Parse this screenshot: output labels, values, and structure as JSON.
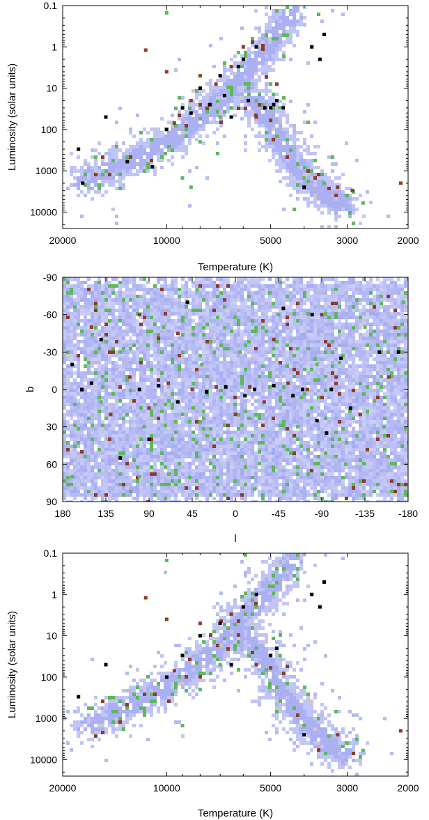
{
  "chart_data": [
    {
      "type": "heatmap",
      "title": "",
      "xlabel": "Temperature (K)",
      "ylabel": "Luminosity (solar units)",
      "x_scale": "log",
      "x_reversed": true,
      "y_scale": "log",
      "xlim": [
        20000,
        2000
      ],
      "ylim": [
        0.1,
        25000
      ],
      "x_ticks": [
        20000,
        10000,
        5000,
        3000,
        2000
      ],
      "x_tick_labels": [
        "20000",
        "10000",
        "5000",
        "3000",
        "2000"
      ],
      "y_ticks": [
        0.1,
        1,
        10,
        100,
        1000,
        10000
      ],
      "y_tick_labels": [
        "0.1",
        "1",
        "10",
        "100",
        "1000",
        "10000"
      ],
      "grid": false,
      "colors": {
        "density": "#8f96ee",
        "green": "#5db85a",
        "red": "#8e3c28",
        "black": "#000000",
        "pale": "#c9c9cf"
      },
      "branches": [
        {
          "name": "main-sequence",
          "points": [
            [
              17500,
              1800
            ],
            [
              12000,
              500
            ],
            [
              9000,
              120
            ],
            [
              7000,
              20
            ],
            [
              6000,
              5
            ],
            [
              5000,
              0.8
            ],
            [
              4300,
              0.15
            ]
          ]
        },
        {
          "name": "giant-branch",
          "points": [
            [
              6000,
              10
            ],
            [
              5200,
              40
            ],
            [
              4800,
              150
            ],
            [
              4200,
              800
            ],
            [
              3600,
              3000
            ],
            [
              3000,
              8000
            ]
          ]
        }
      ],
      "highlighted_points": {
        "black": [
          [
            18000,
            300
          ],
          [
            17500,
            2000
          ],
          [
            15000,
            50
          ],
          [
            13000,
            600
          ],
          [
            11000,
            800
          ],
          [
            10000,
            100
          ],
          [
            9000,
            30
          ],
          [
            8500,
            40
          ],
          [
            8000,
            10
          ],
          [
            7500,
            25
          ],
          [
            7000,
            5
          ],
          [
            6800,
            15
          ],
          [
            6500,
            50
          ],
          [
            6200,
            3
          ],
          [
            6000,
            2
          ],
          [
            5800,
            20
          ],
          [
            5500,
            1
          ],
          [
            5200,
            30
          ],
          [
            5000,
            30
          ],
          [
            4900,
            25
          ],
          [
            4800,
            20
          ],
          [
            4600,
            30
          ],
          [
            4000,
            2500
          ],
          [
            3800,
            1
          ],
          [
            3600,
            2
          ],
          [
            3500,
            0.5
          ]
        ],
        "red": [
          [
            9500,
            70
          ],
          [
            8500,
            20
          ],
          [
            8000,
            5
          ],
          [
            7200,
            8
          ],
          [
            6500,
            3
          ],
          [
            6000,
            1
          ],
          [
            5500,
            50
          ],
          [
            5000,
            60
          ],
          [
            4800,
            8
          ],
          [
            3200,
            2500
          ],
          [
            2900,
            3000
          ],
          [
            2100,
            2000
          ],
          [
            11500,
            1.2
          ],
          [
            10000,
            4
          ]
        ],
        "green": [
          [
            10000,
            0.15
          ],
          [
            9000,
            1500
          ],
          [
            8000,
            200
          ],
          [
            7000,
            50
          ],
          [
            6500,
            30
          ],
          [
            5800,
            10
          ],
          [
            5500,
            20
          ],
          [
            5000,
            8
          ],
          [
            4700,
            30
          ],
          [
            4000,
            1500
          ],
          [
            3500,
            2000
          ],
          [
            3000,
            4000
          ],
          [
            2700,
            6000
          ],
          [
            8500,
            2500
          ]
        ]
      }
    },
    {
      "type": "heatmap",
      "title": "",
      "xlabel": "l",
      "ylabel": "b",
      "x_reversed": true,
      "xlim": [
        180,
        -180
      ],
      "ylim": [
        -90,
        90
      ],
      "x_ticks": [
        180,
        135,
        90,
        45,
        0,
        -45,
        -90,
        -135,
        -180
      ],
      "x_tick_labels": [
        "180",
        "135",
        "90",
        "45",
        "0",
        "-45",
        "-90",
        "-135",
        "-180"
      ],
      "y_ticks": [
        90,
        60,
        30,
        0,
        -30,
        -60,
        -90
      ],
      "y_tick_labels": [
        "90",
        "60",
        "30",
        "0",
        "-30",
        "-60",
        "-90"
      ],
      "grid": false,
      "colors": {
        "density": "#8f96ee",
        "green": "#5db85a",
        "red": "#8e3c28",
        "black": "#000000",
        "pale": "#c9c9cf"
      },
      "highlighted_points": {
        "black": [
          [
            160,
            0
          ],
          [
            150,
            -5
          ],
          [
            120,
            55
          ],
          [
            100,
            0
          ],
          [
            80,
            -3
          ],
          [
            60,
            10
          ],
          [
            30,
            2
          ],
          [
            10,
            -2
          ],
          [
            -10,
            5
          ],
          [
            -20,
            0
          ],
          [
            -40,
            -3
          ],
          [
            -60,
            5
          ],
          [
            -70,
            0
          ],
          [
            -85,
            25
          ],
          [
            -95,
            35
          ],
          [
            -100,
            0
          ],
          [
            -110,
            -25
          ],
          [
            -120,
            15
          ],
          [
            -150,
            -30
          ],
          [
            -170,
            -30
          ],
          [
            170,
            -20
          ],
          [
            140,
            -40
          ],
          [
            90,
            40
          ],
          [
            -50,
            -65
          ],
          [
            -80,
            -60
          ],
          [
            50,
            -70
          ]
        ],
        "red": [
          [
            130,
            20
          ],
          [
            110,
            -10
          ],
          [
            90,
            15
          ],
          [
            70,
            -5
          ],
          [
            45,
            0
          ],
          [
            20,
            -2
          ],
          [
            0,
            20
          ],
          [
            -15,
            -2
          ],
          [
            -30,
            10
          ],
          [
            -55,
            -5
          ],
          [
            -75,
            0
          ],
          [
            -105,
            -10
          ],
          [
            -130,
            20
          ],
          [
            -160,
            -10
          ],
          [
            150,
            -50
          ],
          [
            100,
            -60
          ],
          [
            60,
            -45
          ],
          [
            -40,
            -40
          ],
          [
            -90,
            -60
          ],
          [
            160,
            50
          ]
        ],
        "green": [
          [
            170,
            70
          ],
          [
            140,
            10
          ],
          [
            120,
            -30
          ],
          [
            95,
            30
          ],
          [
            75,
            -50
          ],
          [
            55,
            20
          ],
          [
            35,
            -20
          ],
          [
            15,
            40
          ],
          [
            -5,
            -30
          ],
          [
            -25,
            50
          ],
          [
            -45,
            -60
          ],
          [
            -65,
            30
          ],
          [
            -85,
            -20
          ],
          [
            -115,
            60
          ],
          [
            -135,
            -50
          ],
          [
            -155,
            30
          ],
          [
            -175,
            -70
          ],
          [
            100,
            70
          ],
          [
            -20,
            80
          ],
          [
            40,
            -80
          ]
        ]
      }
    },
    {
      "type": "heatmap",
      "title": "",
      "xlabel": "Temperature (K)",
      "ylabel": "Luminosity (solar units)",
      "x_scale": "log",
      "x_reversed": true,
      "y_scale": "log",
      "xlim": [
        20000,
        2000
      ],
      "ylim": [
        0.1,
        25000
      ],
      "x_ticks": [
        20000,
        10000,
        5000,
        3000,
        2000
      ],
      "x_tick_labels": [
        "20000",
        "10000",
        "5000",
        "3000",
        "2000"
      ],
      "y_ticks": [
        0.1,
        1,
        10,
        100,
        1000,
        10000
      ],
      "y_tick_labels": [
        "0.1",
        "1",
        "10",
        "100",
        "1000",
        "10000"
      ],
      "grid": false,
      "colors": {
        "density": "#8f96ee",
        "green": "#5db85a",
        "red": "#8e3c28",
        "black": "#000000",
        "pale": "#c9c9cf"
      },
      "branches": [
        {
          "name": "main-sequence",
          "points": [
            [
              17000,
              1500
            ],
            [
              12000,
              400
            ],
            [
              9000,
              100
            ],
            [
              7000,
              18
            ],
            [
              6000,
              4
            ],
            [
              5000,
              0.7
            ],
            [
              4300,
              0.15
            ]
          ]
        },
        {
          "name": "giant-branch",
          "points": [
            [
              6000,
              10
            ],
            [
              5200,
              40
            ],
            [
              4800,
              150
            ],
            [
              4200,
              800
            ],
            [
              3600,
              3000
            ],
            [
              3000,
              8000
            ]
          ]
        }
      ],
      "highlighted_points": {
        "black": [
          [
            18000,
            300
          ],
          [
            15000,
            50
          ],
          [
            10000,
            100
          ],
          [
            9000,
            30
          ],
          [
            8000,
            10
          ],
          [
            7000,
            5
          ],
          [
            6500,
            50
          ],
          [
            6000,
            2
          ],
          [
            5500,
            1
          ],
          [
            5000,
            30
          ],
          [
            4800,
            20
          ],
          [
            4000,
            2500
          ],
          [
            3800,
            1
          ],
          [
            3600,
            2
          ],
          [
            3500,
            0.5
          ]
        ],
        "red": [
          [
            9500,
            70
          ],
          [
            8000,
            5
          ],
          [
            6500,
            3
          ],
          [
            5500,
            50
          ],
          [
            5000,
            60
          ],
          [
            3200,
            2500
          ],
          [
            2100,
            2000
          ],
          [
            11500,
            1.2
          ],
          [
            10000,
            4
          ]
        ],
        "green": [
          [
            10000,
            0.15
          ],
          [
            9000,
            1500
          ],
          [
            8000,
            200
          ],
          [
            7000,
            50
          ],
          [
            5500,
            20
          ],
          [
            4700,
            30
          ],
          [
            4000,
            1500
          ],
          [
            3000,
            4000
          ],
          [
            2700,
            6000
          ]
        ]
      }
    }
  ]
}
